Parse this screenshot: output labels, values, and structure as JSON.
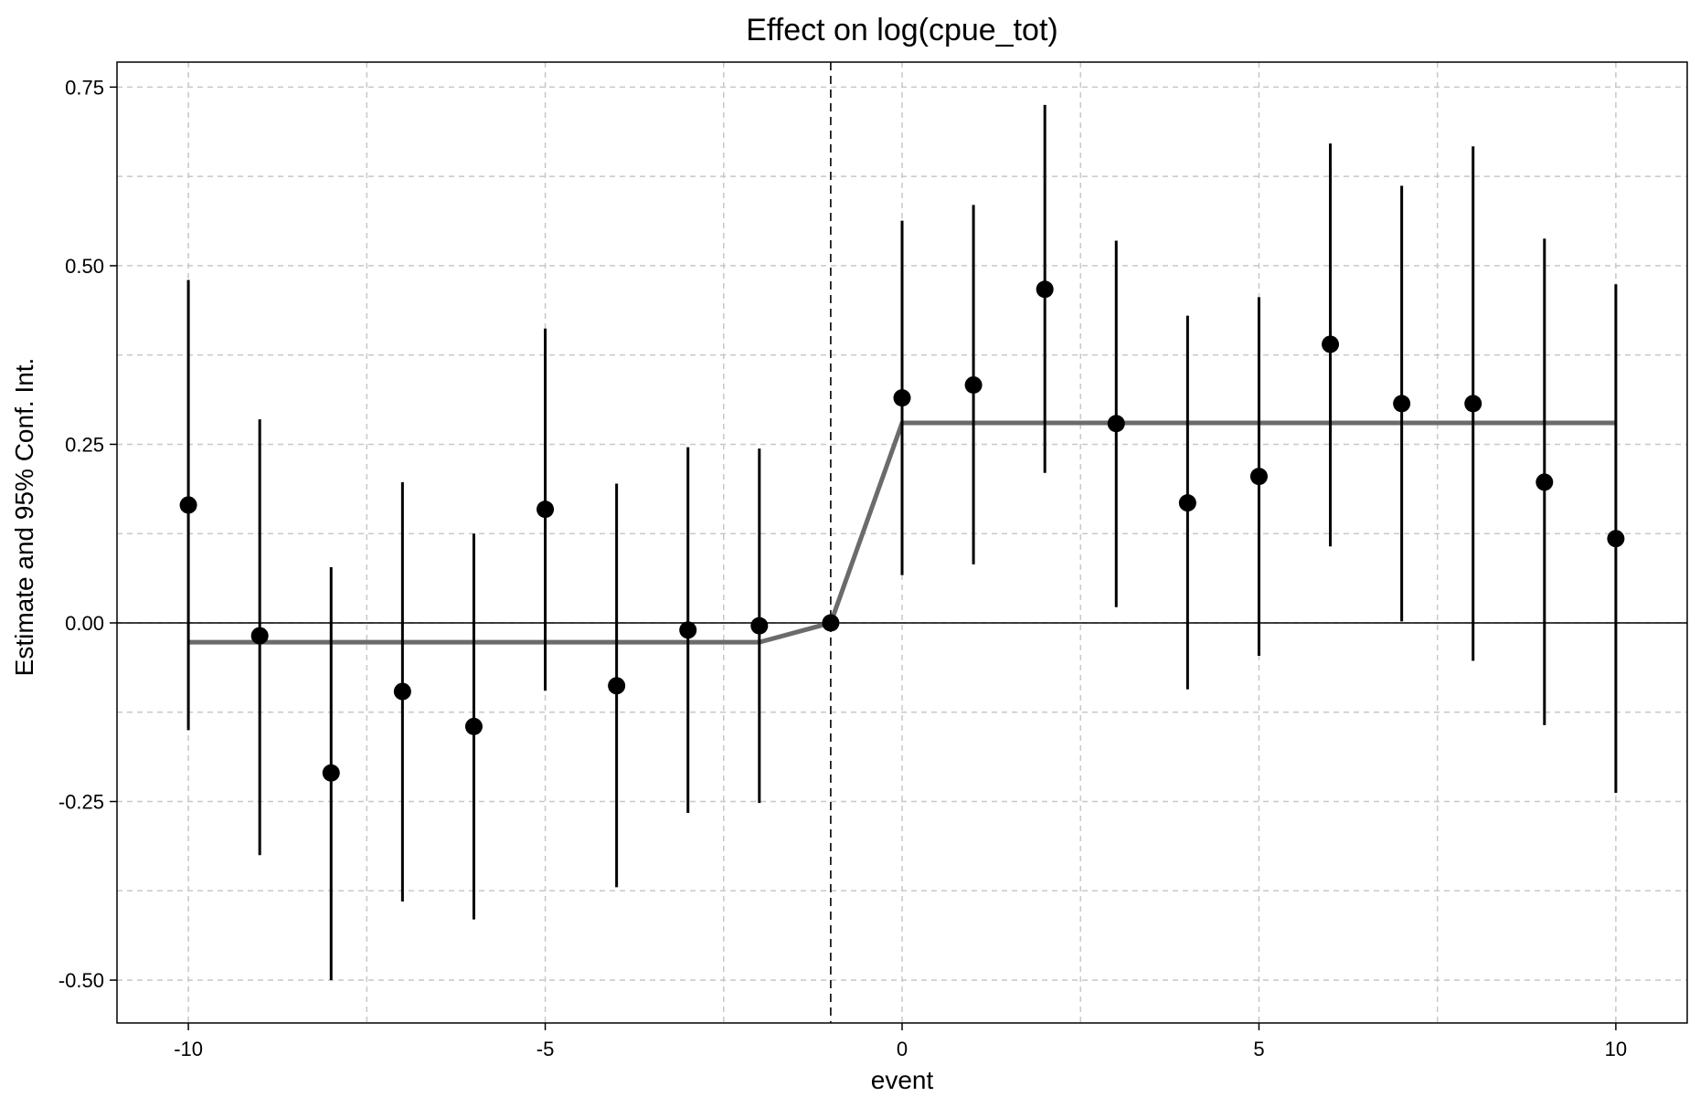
{
  "chart_data": {
    "type": "scatter",
    "title": "Effect on log(cpue_tot)",
    "xlabel": "event",
    "ylabel": "Estimate and 95% Conf. Int.",
    "xlim": [
      -11,
      11
    ],
    "ylim": [
      -0.56,
      0.785
    ],
    "x_ticks": [
      -10,
      -5,
      0,
      5,
      10
    ],
    "x_tick_labels": [
      "-10",
      "-5",
      "0",
      "5",
      "10"
    ],
    "y_ticks": [
      -0.5,
      -0.25,
      0,
      0.25,
      0.5,
      0.75
    ],
    "y_tick_labels": [
      "-0.50",
      "-0.25",
      "0.00",
      "0.25",
      "0.50",
      "0.75"
    ],
    "grid": true,
    "reference_vline_x": -1,
    "reference_hline_y": 0,
    "colors": {
      "points": "#000000",
      "errorbars": "#000000",
      "fit_line": "#6b6b6b",
      "grid": "#c8c8c8"
    },
    "series": [
      {
        "kind": "point_estimates_with_ci",
        "points": [
          {
            "x": -10,
            "y": 0.165,
            "lo": -0.15,
            "hi": 0.48
          },
          {
            "x": -9,
            "y": -0.018,
            "lo": -0.325,
            "hi": 0.285
          },
          {
            "x": -8,
            "y": -0.21,
            "lo": -0.5,
            "hi": 0.078
          },
          {
            "x": -7,
            "y": -0.096,
            "lo": -0.39,
            "hi": 0.197
          },
          {
            "x": -6,
            "y": -0.145,
            "lo": -0.415,
            "hi": 0.125
          },
          {
            "x": -5,
            "y": 0.159,
            "lo": -0.095,
            "hi": 0.412
          },
          {
            "x": -4,
            "y": -0.088,
            "lo": -0.37,
            "hi": 0.195
          },
          {
            "x": -3,
            "y": -0.01,
            "lo": -0.266,
            "hi": 0.246
          },
          {
            "x": -2,
            "y": -0.004,
            "lo": -0.252,
            "hi": 0.244
          },
          {
            "x": -1,
            "y": 0.0,
            "lo": 0.0,
            "hi": 0.0
          },
          {
            "x": 0,
            "y": 0.315,
            "lo": 0.067,
            "hi": 0.563
          },
          {
            "x": 1,
            "y": 0.333,
            "lo": 0.082,
            "hi": 0.585
          },
          {
            "x": 2,
            "y": 0.467,
            "lo": 0.21,
            "hi": 0.725
          },
          {
            "x": 3,
            "y": 0.279,
            "lo": 0.022,
            "hi": 0.535
          },
          {
            "x": 4,
            "y": 0.168,
            "lo": -0.093,
            "hi": 0.43
          },
          {
            "x": 5,
            "y": 0.205,
            "lo": -0.046,
            "hi": 0.456
          },
          {
            "x": 6,
            "y": 0.39,
            "lo": 0.107,
            "hi": 0.671
          },
          {
            "x": 7,
            "y": 0.307,
            "lo": 0.002,
            "hi": 0.612
          },
          {
            "x": 8,
            "y": 0.307,
            "lo": -0.053,
            "hi": 0.667
          },
          {
            "x": 9,
            "y": 0.197,
            "lo": -0.143,
            "hi": 0.538
          },
          {
            "x": 10,
            "y": 0.118,
            "lo": -0.238,
            "hi": 0.474
          }
        ]
      },
      {
        "kind": "step_line",
        "x": [
          -10,
          -2,
          -1,
          0,
          10
        ],
        "y": [
          -0.027,
          -0.027,
          0.0,
          0.28,
          0.28
        ]
      }
    ]
  }
}
